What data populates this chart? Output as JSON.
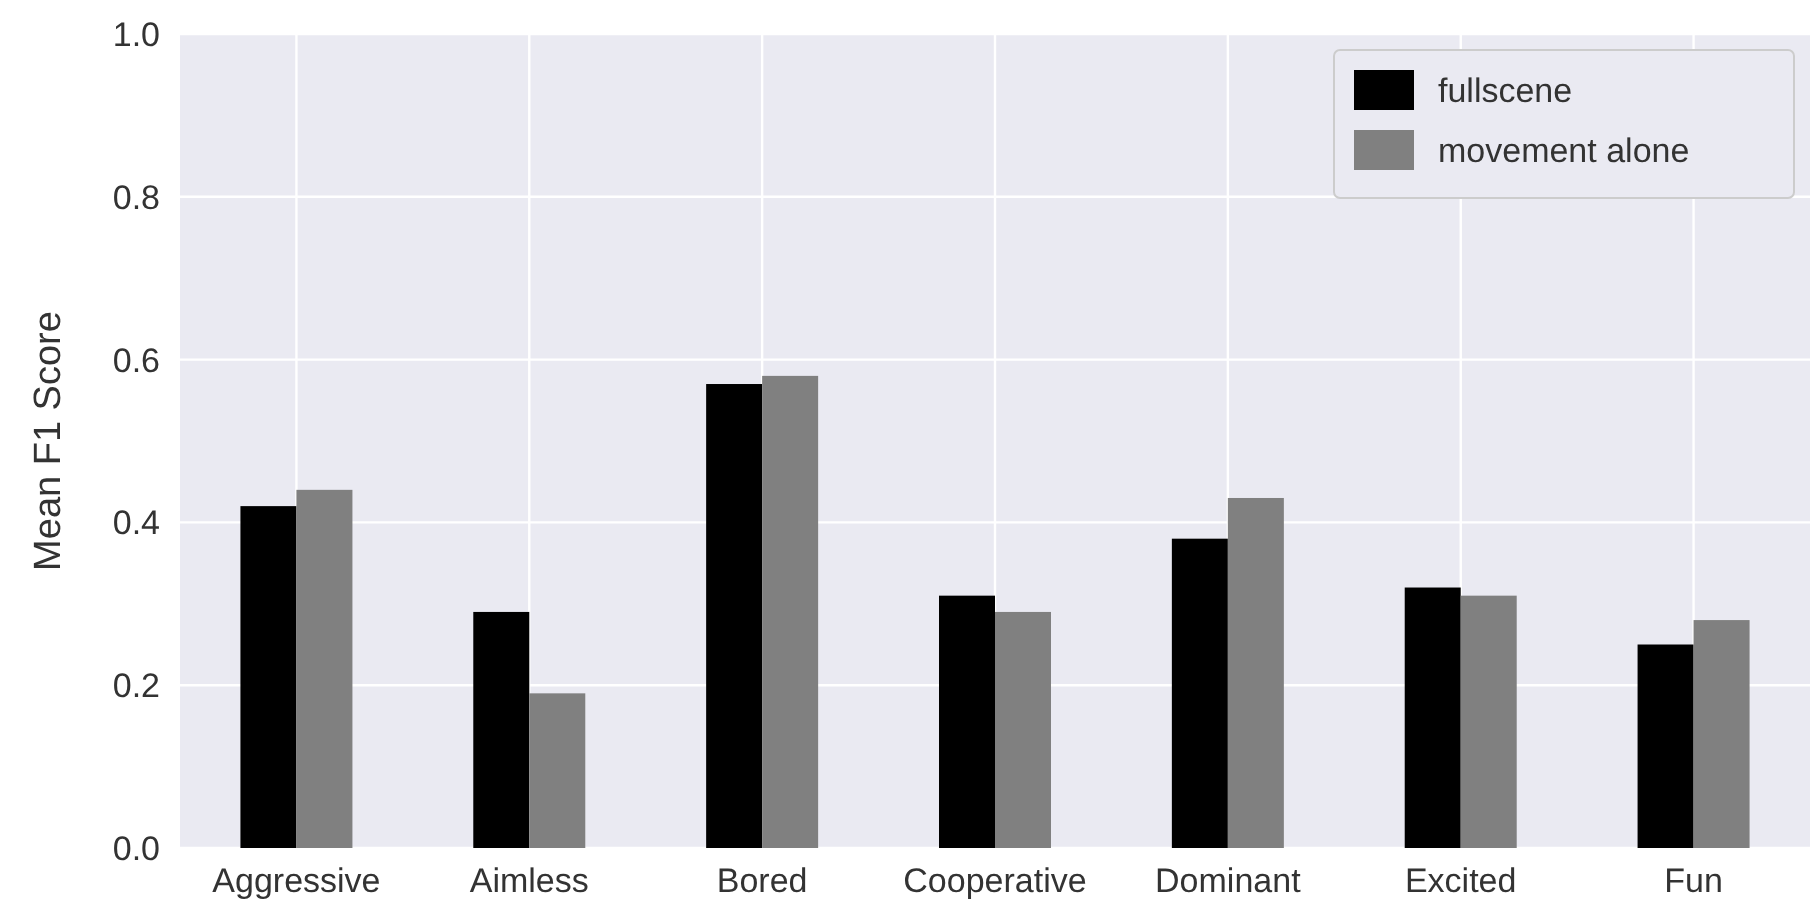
{
  "chart_data": {
    "type": "bar",
    "ylabel": "Mean F1 Score",
    "categories": [
      "Aggressive",
      "Aimless",
      "Bored",
      "Cooperative",
      "Dominant",
      "Excited",
      "Fun"
    ],
    "series": [
      {
        "name": "fullscene",
        "color": "#000000",
        "values": [
          0.42,
          0.29,
          0.57,
          0.31,
          0.38,
          0.32,
          0.25
        ]
      },
      {
        "name": "movement alone",
        "color": "#808080",
        "values": [
          0.44,
          0.19,
          0.58,
          0.29,
          0.43,
          0.31,
          0.28
        ]
      }
    ],
    "ylim": [
      0,
      1
    ],
    "yticks": [
      {
        "value": 0,
        "label": "0.0"
      },
      {
        "value": 0.2,
        "label": "0.2"
      },
      {
        "value": 0.4,
        "label": "0.4"
      },
      {
        "value": 0.6,
        "label": "0.6"
      },
      {
        "value": 0.8,
        "label": "0.8"
      },
      {
        "value": 1,
        "label": "1.0"
      }
    ],
    "grid": true,
    "legend": "top right"
  }
}
